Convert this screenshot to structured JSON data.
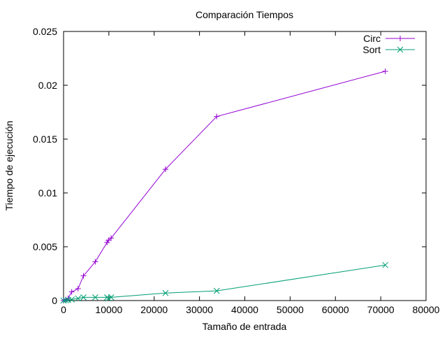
{
  "chart_data": {
    "type": "line",
    "title": "Comparación Tiempos",
    "xlabel": "Tamaño de entrada",
    "ylabel": "Tiempo de ejecución",
    "xlim": [
      0,
      80000
    ],
    "ylim": [
      0,
      0.025
    ],
    "x_ticks": [
      0,
      10000,
      20000,
      30000,
      40000,
      50000,
      60000,
      70000,
      80000
    ],
    "x_tick_labels": [
      "0",
      "10000",
      "20000",
      "30000",
      "40000",
      "50000",
      "60000",
      "70000",
      "80000"
    ],
    "y_ticks": [
      0,
      0.005,
      0.01,
      0.015,
      0.02,
      0.025
    ],
    "y_tick_labels": [
      "0",
      "0.005",
      "0.01",
      "0.015",
      "0.02",
      "0.025"
    ],
    "grid": false,
    "legend_position": "top-right",
    "series": [
      {
        "name": "Circ",
        "color": "#9400d3",
        "marker": "plus",
        "x": [
          0,
          500,
          1000,
          1800,
          3200,
          4400,
          7000,
          9600,
          9900,
          10500,
          22500,
          33800,
          71000
        ],
        "y": [
          0,
          0.0001,
          0.0002,
          0.0008,
          0.0011,
          0.0023,
          0.0036,
          0.0054,
          0.0056,
          0.0058,
          0.0122,
          0.0171,
          0.0213
        ]
      },
      {
        "name": "Sort",
        "color": "#009e73",
        "marker": "x",
        "x": [
          0,
          500,
          1000,
          1800,
          3200,
          4400,
          7000,
          9600,
          9900,
          10500,
          22500,
          33800,
          71000
        ],
        "y": [
          0,
          2e-05,
          5e-05,
          0.0001,
          0.0002,
          0.0003,
          0.0003,
          0.0003,
          0.0002,
          0.0003,
          0.0007,
          0.0009,
          0.0033
        ]
      }
    ]
  }
}
